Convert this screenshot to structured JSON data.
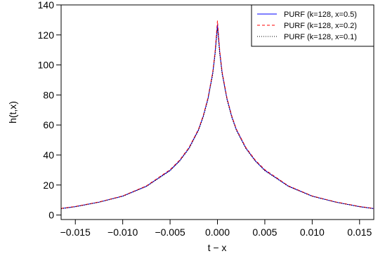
{
  "chart_data": {
    "type": "line",
    "xlabel": "t − x",
    "ylabel": "h(t,x)",
    "xlim": [
      -0.0165,
      0.0165
    ],
    "ylim": [
      -3,
      140
    ],
    "x_ticks": [
      -0.015,
      -0.01,
      -0.005,
      0.0,
      0.005,
      0.01,
      0.015
    ],
    "x_tick_labels": [
      "−0.015",
      "−0.010",
      "−0.005",
      "0.000",
      "0.005",
      "0.010",
      "0.015"
    ],
    "y_ticks": [
      0,
      20,
      40,
      60,
      80,
      100,
      120,
      140
    ],
    "y_tick_labels": [
      "0",
      "20",
      "40",
      "60",
      "80",
      "100",
      "120",
      "140"
    ],
    "grid": false,
    "legend_position": "top-right",
    "x": [
      -0.0165,
      -0.015,
      -0.0125,
      -0.01,
      -0.0075,
      -0.005,
      -0.004,
      -0.003,
      -0.002,
      -0.0015,
      -0.001,
      -0.0005,
      -0.00025,
      0.0,
      0.00025,
      0.0005,
      0.001,
      0.0015,
      0.002,
      0.003,
      0.004,
      0.005,
      0.0075,
      0.01,
      0.0125,
      0.015,
      0.0165
    ],
    "series": [
      {
        "name": "PURF (k=128, x=0.5)",
        "color": "#0000ff",
        "dash": "solid",
        "values": [
          4.3,
          5.6,
          8.6,
          12.6,
          19.2,
          29.8,
          36.1,
          44.6,
          56.8,
          65.8,
          77.6,
          94.5,
          108.0,
          127.0,
          108.0,
          94.5,
          77.6,
          65.8,
          56.8,
          44.6,
          36.1,
          29.8,
          19.2,
          12.6,
          8.6,
          5.6,
          4.3
        ]
      },
      {
        "name": "PURF (k=128, x=0.2)",
        "color": "#ff0000",
        "dash": "dashed",
        "values": [
          4.4,
          5.7,
          8.7,
          12.7,
          19.4,
          30.2,
          36.5,
          45.0,
          57.2,
          66.3,
          78.2,
          95.2,
          109.0,
          129.5,
          109.0,
          95.2,
          78.2,
          66.3,
          57.2,
          45.0,
          36.5,
          30.2,
          19.4,
          12.7,
          8.7,
          5.7,
          4.4
        ]
      },
      {
        "name": "PURF (k=128, x=0.1)",
        "color": "#000000",
        "dash": "dotted",
        "values": [
          4.2,
          5.5,
          8.5,
          12.5,
          19.0,
          29.5,
          35.8,
          44.2,
          56.3,
          65.2,
          77.0,
          93.5,
          106.5,
          124.0,
          106.5,
          93.5,
          77.0,
          65.2,
          56.3,
          44.2,
          35.8,
          29.5,
          19.0,
          12.5,
          8.5,
          5.5,
          4.2
        ]
      }
    ]
  }
}
